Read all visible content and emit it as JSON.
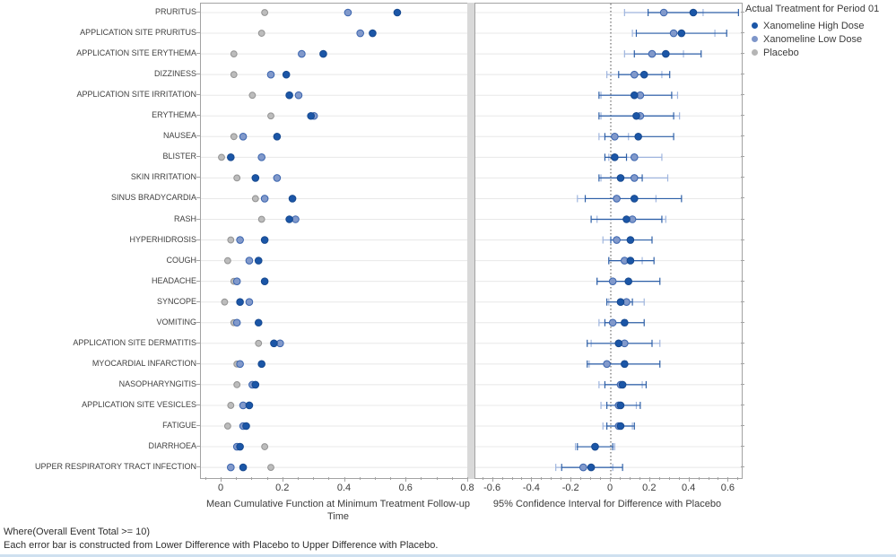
{
  "legend": {
    "title": "Actual Treatment for Period 01",
    "items": [
      {
        "label": "Xanomeline High Dose",
        "color": "#1b56a7"
      },
      {
        "label": "Xanomeline Low Dose",
        "color": "#7e96c9"
      },
      {
        "label": "Placebo",
        "color": "#b5b5b5"
      }
    ]
  },
  "footer": {
    "line1": "Where(Overall Event Total >= 10)",
    "line2": "Each error bar is constructed from Lower Difference with Placebo to Upper Difference with Placebo."
  },
  "chart_data": [
    {
      "type": "scatter",
      "panel": "left",
      "xlabel": "Mean Cumulative Function at Minimum Treatment Follow-up Time",
      "xticks": [
        0,
        0.2,
        0.4,
        0.6,
        0.8
      ],
      "xtick_labels": [
        "0",
        "0.2",
        "0.4",
        "0.6",
        "0.8"
      ],
      "xlim": [
        -0.067,
        0.8
      ],
      "minor_tick_step": 0.05,
      "grid": true,
      "categories": [
        "PRURITUS",
        "APPLICATION SITE PRURITUS",
        "APPLICATION SITE ERYTHEMA",
        "DIZZINESS",
        "APPLICATION SITE IRRITATION",
        "ERYTHEMA",
        "NAUSEA",
        "BLISTER",
        "SKIN IRRITATION",
        "SINUS BRADYCARDIA",
        "RASH",
        "HYPERHIDROSIS",
        "COUGH",
        "HEADACHE",
        "SYNCOPE",
        "VOMITING",
        "APPLICATION SITE DERMATITIS",
        "MYOCARDIAL INFARCTION",
        "NASOPHARYNGITIS",
        "APPLICATION SITE VESICLES",
        "FATIGUE",
        "DIARRHOEA",
        "UPPER RESPIRATORY TRACT INFECTION"
      ],
      "series": [
        {
          "name": "Xanomeline High Dose",
          "marker": {
            "fill": "#1b56a7",
            "stroke": "#17498f"
          },
          "values": [
            0.57,
            0.49,
            0.33,
            0.21,
            0.22,
            0.29,
            0.18,
            0.03,
            0.11,
            0.23,
            0.22,
            0.14,
            0.12,
            0.14,
            0.06,
            0.12,
            0.17,
            0.13,
            0.11,
            0.09,
            0.08,
            0.06,
            0.07
          ]
        },
        {
          "name": "Xanomeline Low Dose",
          "marker": {
            "fill": "#8199cb",
            "stroke": "#3a64ae"
          },
          "values": [
            0.41,
            0.45,
            0.26,
            0.16,
            0.25,
            0.3,
            0.07,
            0.13,
            0.18,
            0.14,
            0.24,
            0.06,
            0.09,
            0.05,
            0.09,
            0.05,
            0.19,
            0.06,
            0.1,
            0.07,
            0.07,
            0.05,
            0.03
          ]
        },
        {
          "name": "Placebo",
          "marker": {
            "fill": "#bcbcbc",
            "stroke": "#929292"
          },
          "values": [
            0.14,
            0.13,
            0.04,
            0.04,
            0.1,
            0.16,
            0.04,
            0.0,
            0.05,
            0.11,
            0.13,
            0.03,
            0.02,
            0.04,
            0.01,
            0.04,
            0.12,
            0.05,
            0.05,
            0.03,
            0.02,
            0.14,
            0.16
          ]
        }
      ]
    },
    {
      "type": "scatter-ci",
      "panel": "right",
      "xlabel": "95% Confidence Interval for Difference with Placebo",
      "xticks": [
        -0.6,
        -0.4,
        -0.2,
        0,
        0.2,
        0.4,
        0.6
      ],
      "xtick_labels": [
        "-0.6",
        "-0.4",
        "-0.2",
        "0",
        "0.2",
        "0.4",
        "0.6"
      ],
      "xlim": [
        -0.69,
        0.667
      ],
      "minor_tick_step": 0.05,
      "refline": 0,
      "grid": true,
      "series": [
        {
          "name": "Xanomeline High Dose",
          "marker": {
            "fill": "#1b56a7",
            "stroke": "#17498f"
          },
          "bar_color": "#2d5fa7",
          "est": [
            0.42,
            0.36,
            0.28,
            0.17,
            0.12,
            0.13,
            0.14,
            0.02,
            0.05,
            0.12,
            0.08,
            0.1,
            0.1,
            0.09,
            0.05,
            0.07,
            0.04,
            0.07,
            0.06,
            0.05,
            0.05,
            -0.08,
            -0.1
          ],
          "lower": [
            0.19,
            0.13,
            0.12,
            0.04,
            -0.06,
            -0.06,
            -0.03,
            -0.03,
            -0.06,
            -0.13,
            -0.1,
            0.0,
            -0.01,
            -0.07,
            -0.02,
            -0.03,
            -0.12,
            -0.12,
            -0.03,
            -0.02,
            -0.02,
            -0.17,
            -0.25
          ],
          "upper": [
            0.65,
            0.59,
            0.46,
            0.3,
            0.31,
            0.32,
            0.32,
            0.08,
            0.16,
            0.36,
            0.26,
            0.21,
            0.22,
            0.25,
            0.11,
            0.17,
            0.21,
            0.25,
            0.18,
            0.15,
            0.12,
            0.01,
            0.06
          ]
        },
        {
          "name": "Xanomeline Low Dose",
          "marker": {
            "fill": "#8199cb",
            "stroke": "#3a64ae"
          },
          "bar_color": "#9fb5de",
          "est": [
            0.27,
            0.32,
            0.21,
            0.12,
            0.15,
            0.15,
            0.02,
            0.12,
            0.12,
            0.03,
            0.11,
            0.03,
            0.07,
            0.01,
            0.08,
            0.01,
            0.07,
            -0.02,
            0.05,
            0.04,
            0.04,
            -0.08,
            -0.14
          ],
          "lower": [
            0.07,
            0.11,
            0.07,
            -0.02,
            -0.05,
            -0.05,
            -0.06,
            -0.01,
            -0.05,
            -0.17,
            -0.07,
            -0.04,
            -0.01,
            -0.07,
            -0.01,
            -0.06,
            -0.1,
            -0.11,
            -0.06,
            -0.05,
            -0.04,
            -0.18,
            -0.28
          ],
          "upper": [
            0.47,
            0.53,
            0.37,
            0.26,
            0.34,
            0.35,
            0.09,
            0.26,
            0.29,
            0.23,
            0.28,
            0.1,
            0.16,
            0.09,
            0.17,
            0.08,
            0.25,
            0.08,
            0.16,
            0.13,
            0.11,
            0.02,
            0.01
          ]
        }
      ]
    }
  ]
}
